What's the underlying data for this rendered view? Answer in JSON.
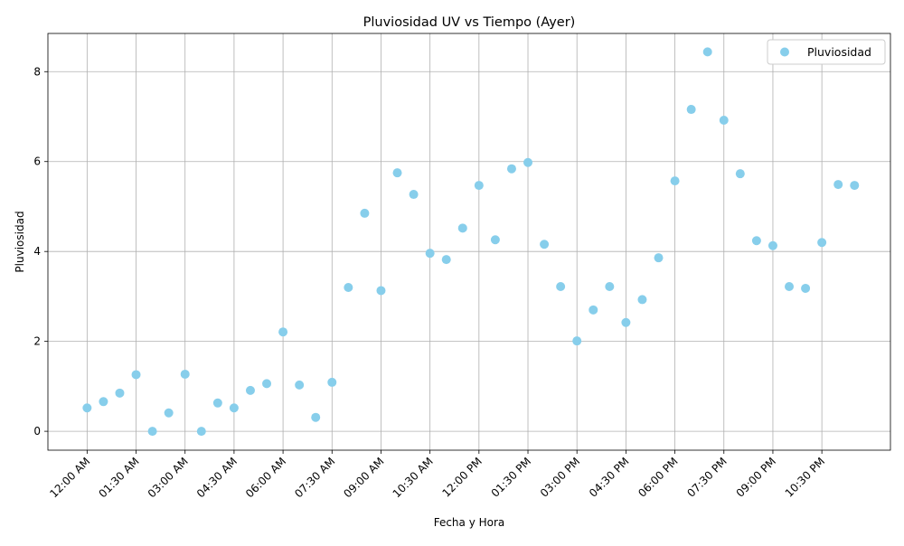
{
  "chart_data": {
    "type": "scatter",
    "title": "Pluviosidad UV vs Tiempo (Ayer)",
    "xlabel": "Fecha y Hora",
    "ylabel": "Pluviosidad",
    "x_tick_labels": [
      "12:00 AM",
      "01:30 AM",
      "03:00 AM",
      "04:30 AM",
      "06:00 AM",
      "07:30 AM",
      "09:00 AM",
      "10:30 AM",
      "12:00 PM",
      "01:30 PM",
      "03:00 PM",
      "04:30 PM",
      "06:00 PM",
      "07:30 PM",
      "09:00 PM",
      "10:30 PM"
    ],
    "x_tick_hours": [
      0,
      1.5,
      3,
      4.5,
      6,
      7.5,
      9,
      10.5,
      12,
      13.5,
      15,
      16.5,
      18,
      19.5,
      21,
      22.5
    ],
    "y_ticks": [
      0,
      2,
      4,
      6,
      8
    ],
    "xlim": [
      -1.2,
      24.6
    ],
    "ylim": [
      -0.42,
      8.85
    ],
    "grid": true,
    "legend_position": "top-right",
    "series": [
      {
        "name": "Pluviosidad",
        "color": "#87ceeb",
        "x": [
          0,
          0.5,
          1,
          1.5,
          2,
          2.5,
          3,
          3.5,
          4,
          4.5,
          5,
          5.5,
          6,
          6.5,
          7,
          7.5,
          8,
          8.5,
          9,
          9.5,
          10,
          10.5,
          11,
          11.5,
          12,
          12.5,
          13,
          13.5,
          14,
          14.5,
          15,
          15.5,
          16,
          16.5,
          17,
          17.5,
          18,
          18.5,
          19,
          19.5,
          20,
          20.5,
          21,
          21.5,
          22,
          22.5,
          23,
          23.5
        ],
        "y": [
          0.52,
          0.66,
          0.85,
          1.26,
          0.0,
          0.41,
          1.27,
          0.0,
          0.63,
          0.52,
          0.91,
          1.06,
          2.21,
          1.03,
          0.31,
          1.09,
          3.2,
          4.85,
          3.13,
          5.75,
          5.27,
          3.96,
          3.82,
          4.52,
          5.47,
          4.26,
          5.84,
          5.98,
          4.16,
          3.22,
          2.01,
          2.7,
          3.22,
          2.42,
          2.93,
          3.86,
          5.57,
          7.16,
          8.44,
          6.92,
          5.73,
          4.24,
          4.13,
          3.22,
          3.18,
          4.2,
          5.49,
          5.47
        ]
      }
    ]
  }
}
